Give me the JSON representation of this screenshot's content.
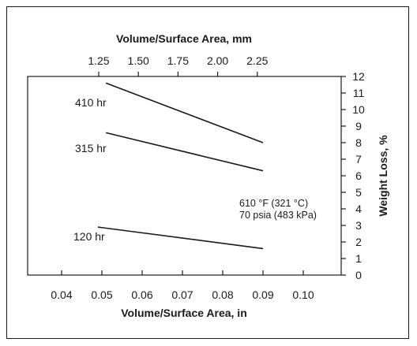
{
  "chart_data": {
    "type": "line",
    "x_bottom": {
      "label": "Volume/Surface Area, in",
      "range": [
        0.03,
        0.11
      ],
      "ticks": [
        0.04,
        0.05,
        0.06,
        0.07,
        0.08,
        0.09,
        0.1
      ],
      "tick_labels": [
        "0.04",
        "0.05",
        "0.06",
        "0.07",
        "0.08",
        "0.09",
        "0.10"
      ]
    },
    "x_top": {
      "label": "Volume/Surface Area, mm",
      "ticks": [
        1.25,
        1.5,
        1.75,
        2.0,
        2.25
      ],
      "tick_labels": [
        "1.25",
        "1.50",
        "1.75",
        "2.00",
        "2.25"
      ]
    },
    "y_right": {
      "label": "Weight Loss, %",
      "range": [
        0,
        12
      ],
      "ticks": [
        0,
        1,
        2,
        3,
        4,
        5,
        6,
        7,
        8,
        9,
        10,
        11,
        12
      ],
      "tick_labels": [
        "0",
        "1",
        "2",
        "3",
        "4",
        "5",
        "6",
        "7",
        "8",
        "9",
        "10",
        "11",
        "12"
      ]
    },
    "series": [
      {
        "name": "410 hr",
        "x": [
          0.051,
          0.09
        ],
        "y": [
          11.6,
          8.0
        ]
      },
      {
        "name": "315 hr",
        "x": [
          0.051,
          0.09
        ],
        "y": [
          8.6,
          6.3
        ]
      },
      {
        "name": "120 hr",
        "x": [
          0.049,
          0.09
        ],
        "y": [
          2.9,
          1.6
        ]
      }
    ],
    "annotations": [
      "610 °F (321 °C)",
      "70 psia (483 kPa)"
    ],
    "grid": false,
    "legend": "none"
  }
}
